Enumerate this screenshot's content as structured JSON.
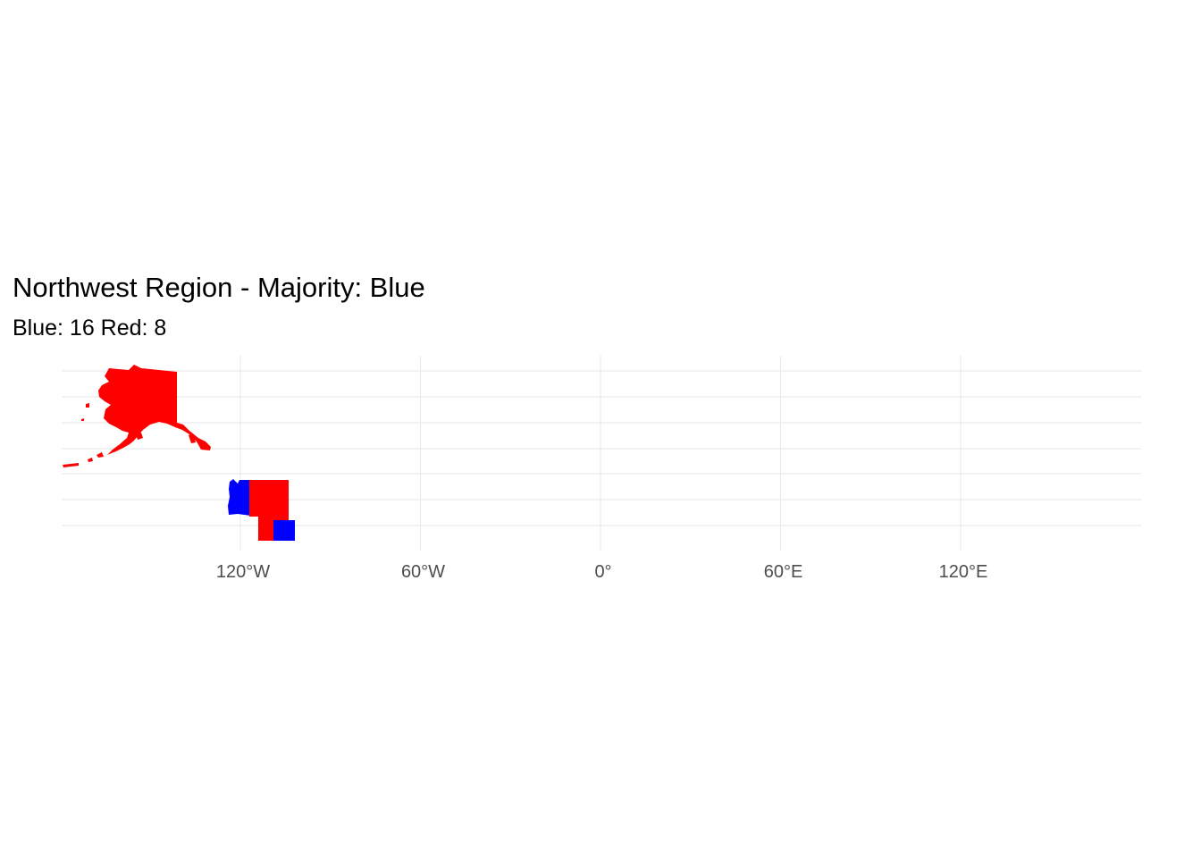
{
  "title": "Northwest Region - Majority: Blue",
  "subtitle": "Blue: 16 Red: 8",
  "colors": {
    "blue": "#0000ff",
    "red": "#ff0000",
    "grid": "#ebebeb",
    "tick_text": "#4d4d4d"
  },
  "axis": {
    "x_ticks": [
      {
        "value": -120,
        "label": "120°W"
      },
      {
        "value": -60,
        "label": "60°W"
      },
      {
        "value": 0,
        "label": "0°"
      },
      {
        "value": 60,
        "label": "60°E"
      },
      {
        "value": 120,
        "label": "120°E"
      }
    ]
  },
  "regions": [
    {
      "name": "Alaska",
      "fill": "red"
    },
    {
      "name": "Washington",
      "fill": "blue"
    },
    {
      "name": "Idaho",
      "fill": "red"
    },
    {
      "name": "Montana",
      "fill": "red"
    },
    {
      "name": "Wyoming",
      "fill": "blue"
    }
  ]
}
